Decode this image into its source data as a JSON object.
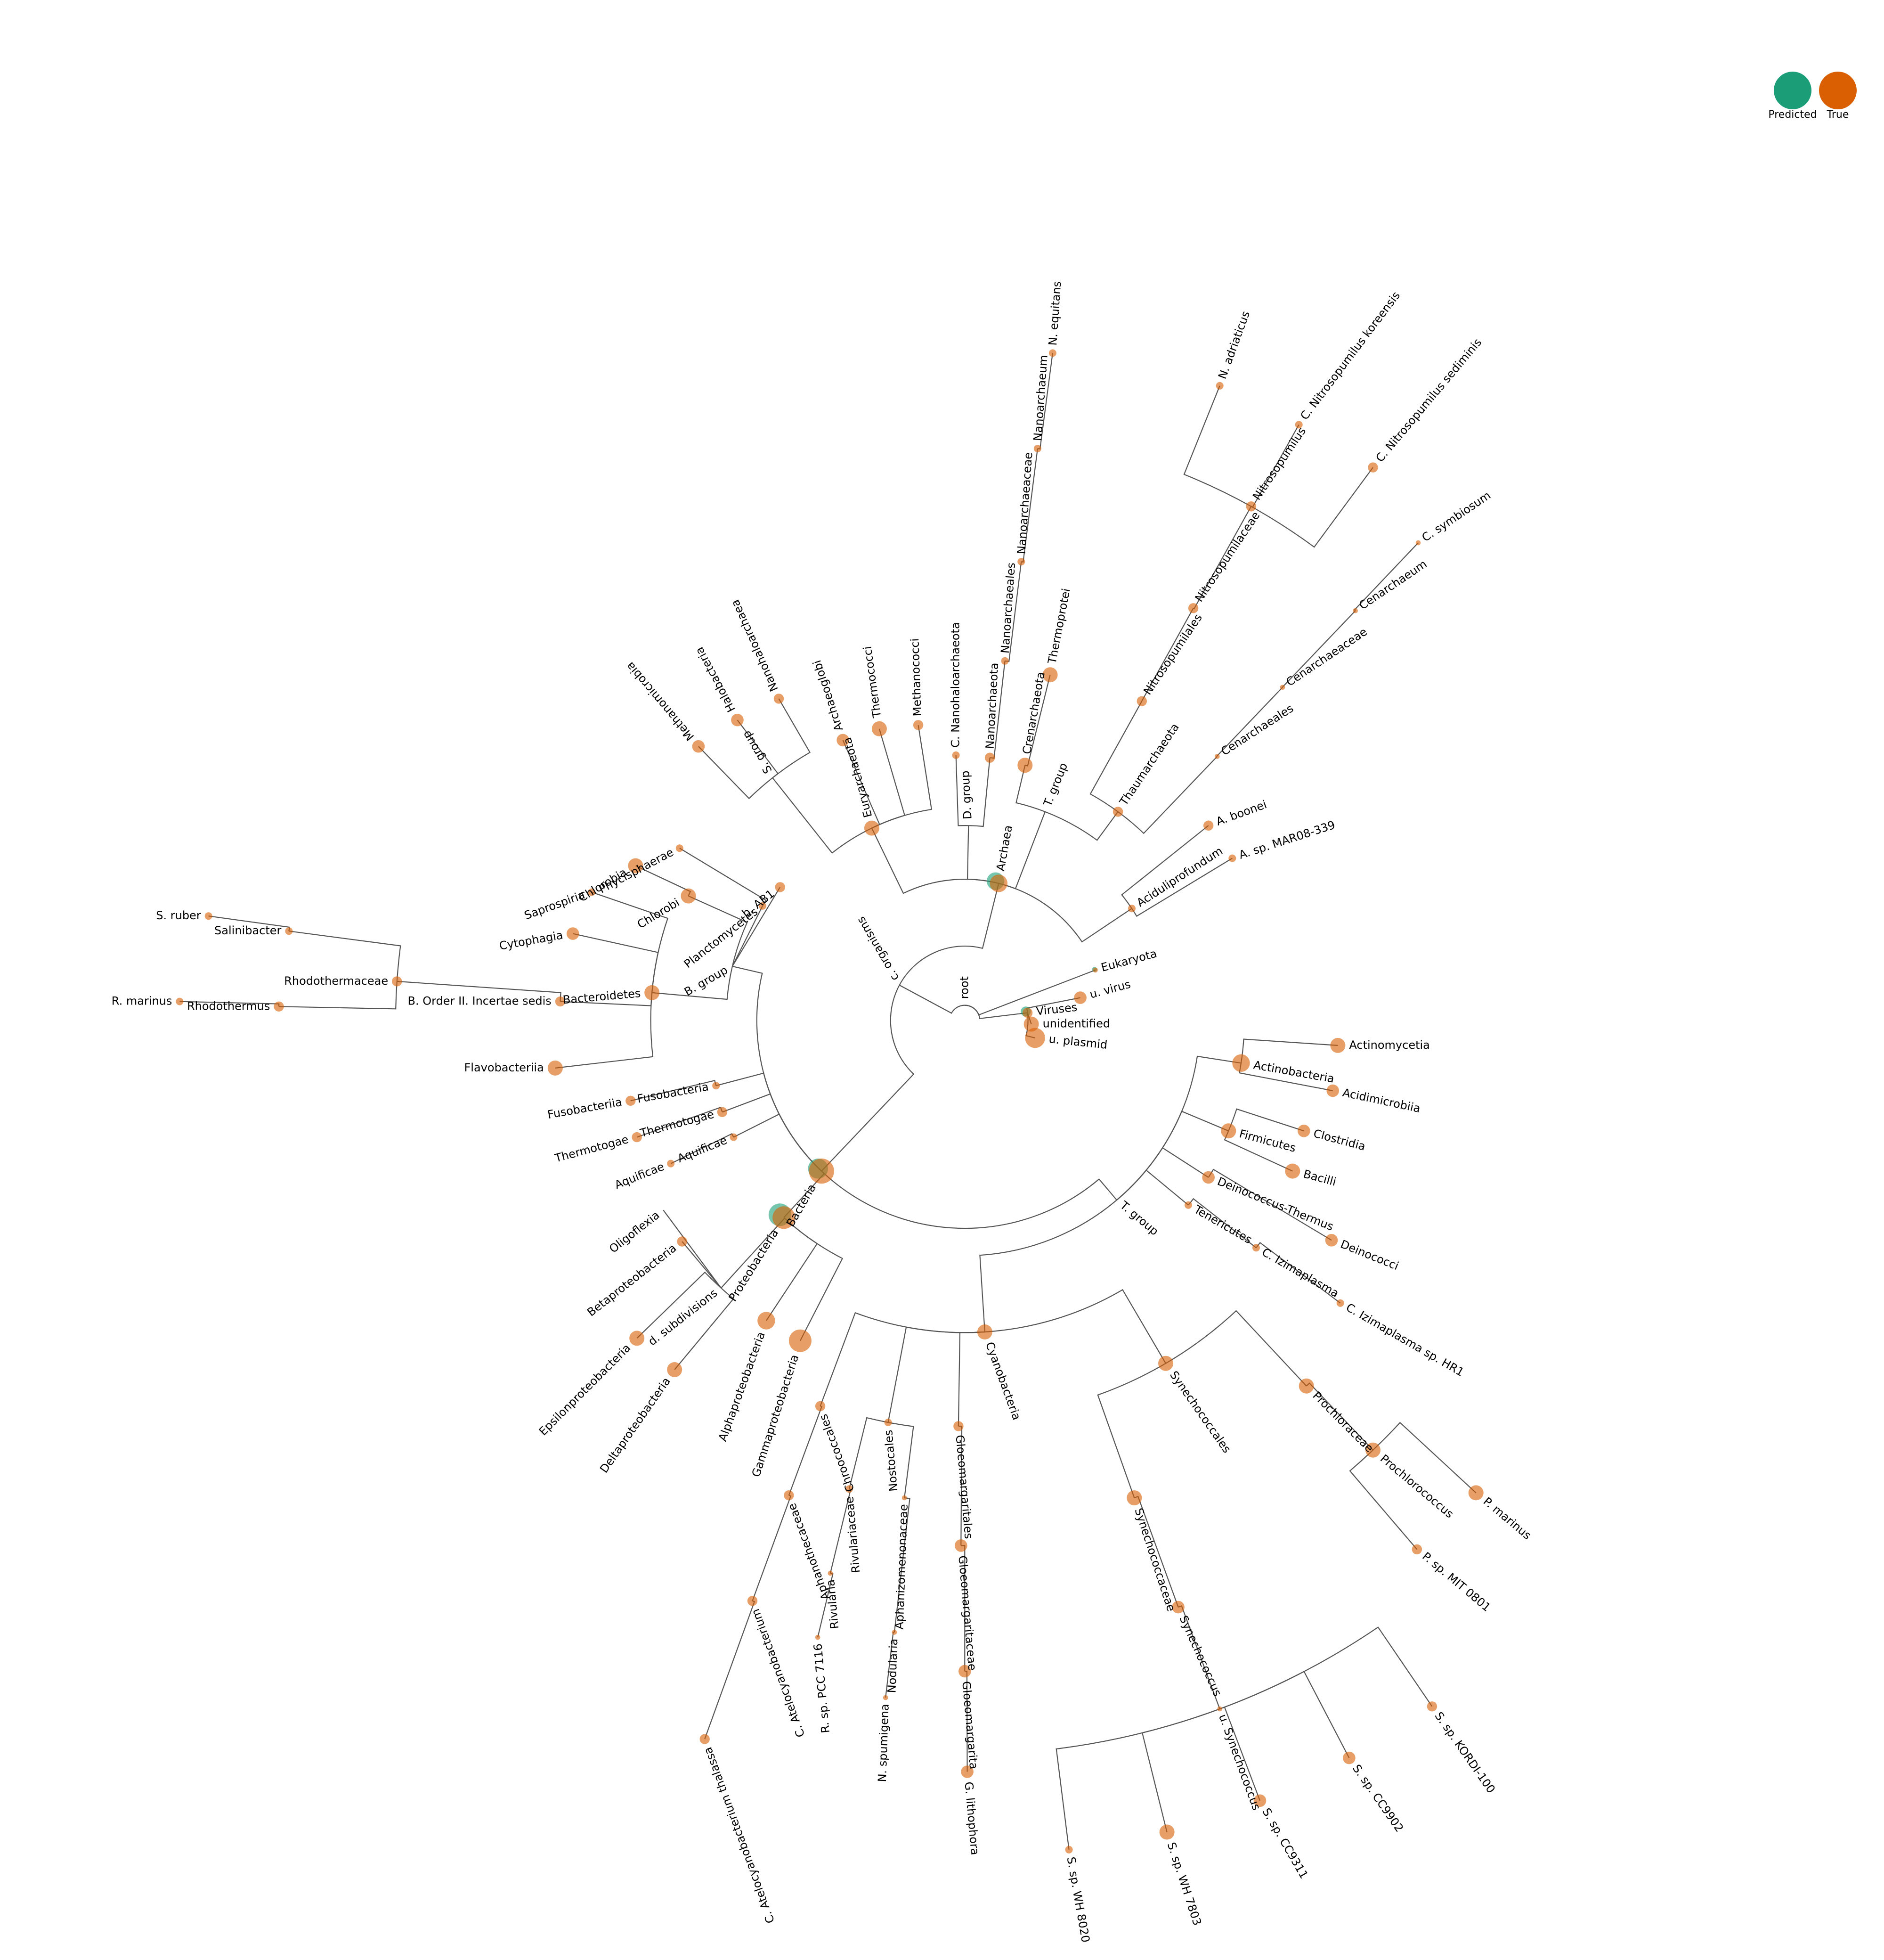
{
  "legend": {
    "predicted_label": "Predicted",
    "true_label": "True",
    "predicted_color": "#1b9e77",
    "true_color": "#d95f02"
  },
  "tree": {
    "line_color": "#555555",
    "root_label": "root",
    "labels": [
      "root",
      "c. organisms",
      "Archaea",
      "D. group",
      "C. Nanohaloarchaeota",
      "Nanoarchaeota",
      "Nanoarchaeales",
      "Nanoarchaeaceae",
      "Nanoarchaeum",
      "N. equitans",
      "T. group",
      "Crenarchaeota",
      "Thermoprotei",
      "Thaumarchaeota",
      "Nitrosopumilales",
      "Nitrosopumilaceae",
      "Nitrosopumilus",
      "N. adriaticus",
      "C. Nitrosopumilus koreensis",
      "C. Nitrosopumilus sediminis",
      "Cenarchaeales",
      "Cenarchaeaceae",
      "Cenarchaeum",
      "C. symbiosum",
      "Aciduliprofundum",
      "A. boonei",
      "A. sp. MAR08-339",
      "Euryarchaeota",
      "Archaeoglobi",
      "Thermococci",
      "Methanococci",
      "S. group",
      "Methanomicrobia",
      "Halobacteria",
      "Nanohaloarchaea",
      "Eukaryota",
      "Viruses",
      "u. virus",
      "unidentified",
      "u. plasmid",
      "Bacteria",
      "B. group",
      "b. AB1",
      "Planctomycetes",
      "Phycisphaerae",
      "Chlorobi",
      "Chlorobia",
      "Bacteroidetes",
      "Saprospiria",
      "Cytophagia",
      "Flavobacteriia",
      "B. Order II. Incertae sedis",
      "Rhodothermaceae",
      "Salinibacter",
      "S. ruber",
      "Rhodothermus",
      "R. marinus",
      "Fusobacteria",
      "Fusobacteriia",
      "Thermotogae",
      "Thermotogae",
      "Aquificae",
      "Aquificae",
      "Proteobacteria",
      "d. subdivisions",
      "Oligoflexia",
      "Betaproteobacteria",
      "Epsilonproteobacteria",
      "Deltaproteobacteria",
      "Alphaproteobacteria",
      "Gammaproteobacteria",
      "T. group",
      "Actinobacteria",
      "Actinomycetia",
      "Acidimicrobiia",
      "Firmicutes",
      "Clostridia",
      "Bacilli",
      "Deinococcus-Thermus",
      "Deinococci",
      "Tenericutes",
      "C. Izimaplasma",
      "C. Izimaplasma sp. HR1",
      "Cyanobacteria",
      "Chroococcales",
      "Aphanothecaceae",
      "C. Atelocyanobacterium",
      "C. Atelocyanobacterium thalassa",
      "Nostocales",
      "Rivulariaceae",
      "Rivularia",
      "R. sp. PCC 7116",
      "Aphanizomenonaceae",
      "Nodularia",
      "N. spumigena",
      "Gloeomargaritales",
      "Gloeomargaritaceae",
      "Gloeomargarita",
      "G. lithophora",
      "Synechococcales",
      "Synechococcaceae",
      "Synechococcus",
      "u. Synechococcus",
      "S. sp. CC9311",
      "S. sp. CC9902",
      "S. sp. KORDI-100",
      "S. sp. WH 7803",
      "S. sp. WH 8020",
      "Prochloraceae",
      "Prochlorococcus",
      "P. marinus",
      "P. sp. MIT 0801"
    ]
  }
}
